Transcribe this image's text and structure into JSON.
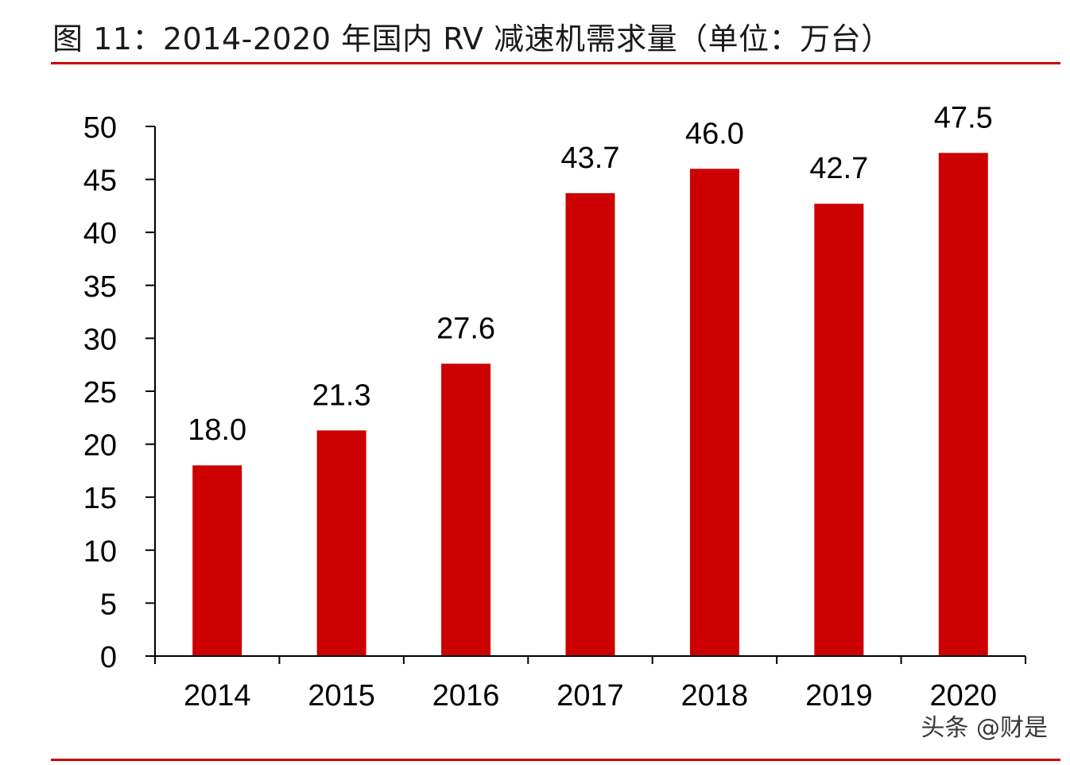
{
  "figure": {
    "title": "图 11：2014-2020 年国内 RV 减速机需求量（单位：万台）",
    "watermark": "头条 @财是"
  },
  "colors": {
    "bar": "#cc0000",
    "rule": "#cc0000",
    "axis": "#000000",
    "text": "#000000"
  },
  "chart_data": {
    "type": "bar",
    "title": "图 11：2014-2020 年国内 RV 减速机需求量（单位：万台）",
    "categories": [
      "2014",
      "2015",
      "2016",
      "2017",
      "2018",
      "2019",
      "2020"
    ],
    "values": [
      18.0,
      21.3,
      27.6,
      43.7,
      46.0,
      42.7,
      47.5
    ],
    "data_labels": [
      "18.0",
      "21.3",
      "27.6",
      "43.7",
      "46.0",
      "42.7",
      "47.5"
    ],
    "xlabel": "",
    "ylabel": "",
    "ylim": [
      0,
      50
    ],
    "yticks": [
      0,
      5,
      10,
      15,
      20,
      25,
      30,
      35,
      40,
      45,
      50
    ],
    "grid": false,
    "legend": "none"
  }
}
